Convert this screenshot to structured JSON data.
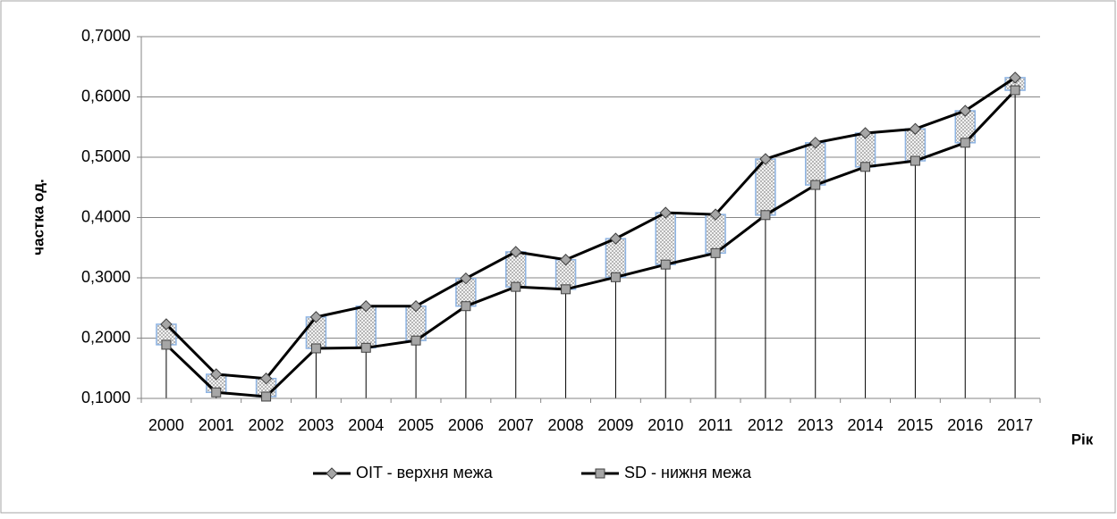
{
  "chart_data": {
    "type": "line",
    "y_label": "частка од.",
    "x_label": "Рік",
    "categories": [
      "2000",
      "2001",
      "2002",
      "2003",
      "2004",
      "2005",
      "2006",
      "2007",
      "2008",
      "2009",
      "2010",
      "2011",
      "2012",
      "2013",
      "2014",
      "2015",
      "2016",
      "2017"
    ],
    "series": [
      {
        "name": "OIT - верхня межа",
        "color": "#000000",
        "marker": "diamond",
        "values": [
          0.223,
          0.14,
          0.133,
          0.235,
          0.253,
          0.253,
          0.299,
          0.343,
          0.33,
          0.365,
          0.408,
          0.405,
          0.497,
          0.524,
          0.54,
          0.547,
          0.577,
          0.632
        ]
      },
      {
        "name": "SD - нижня межа",
        "color": "#000000",
        "marker": "square",
        "values": [
          0.189,
          0.11,
          0.103,
          0.183,
          0.184,
          0.196,
          0.253,
          0.285,
          0.281,
          0.301,
          0.322,
          0.341,
          0.404,
          0.454,
          0.484,
          0.494,
          0.524,
          0.611
        ]
      }
    ],
    "ylim": [
      0.1,
      0.7
    ],
    "yticks": [
      {
        "value": 0.1,
        "label": "0,1000"
      },
      {
        "value": 0.2,
        "label": "0,2000"
      },
      {
        "value": 0.3,
        "label": "0,3000"
      },
      {
        "value": 0.4,
        "label": "0,4000"
      },
      {
        "value": 0.5,
        "label": "0,5000"
      },
      {
        "value": 0.6,
        "label": "0,6000"
      },
      {
        "value": 0.7,
        "label": "0,7000"
      }
    ],
    "grid": true,
    "up_down_bars": true,
    "drop_lines": true,
    "legend": "bottom"
  }
}
